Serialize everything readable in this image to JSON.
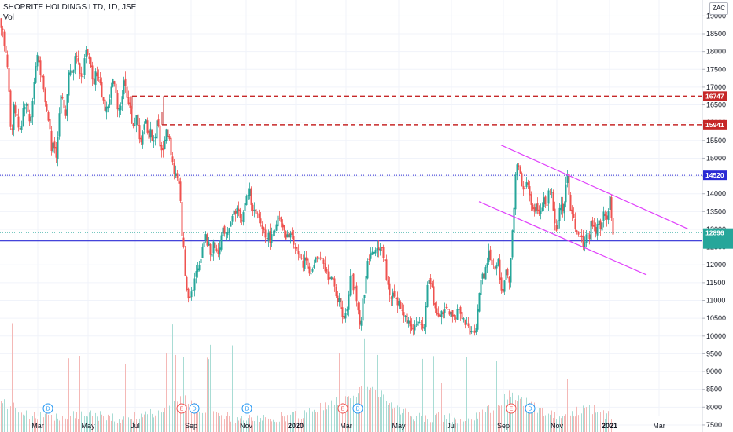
{
  "header": {
    "symbol_title": "SHOPRITE HOLDINGS LTD, 1D, JSE",
    "volume_label": "Vol",
    "currency": "ZAC"
  },
  "colors": {
    "up": "#26a69a",
    "down": "#ef5350",
    "resistance": "#c62828",
    "support_blue": "#2a2ad4",
    "channel": "#e040fb",
    "current_price": "#26a69a"
  },
  "chart_data": {
    "type": "candlestick",
    "ylim": [
      7300,
      19450
    ],
    "y_ticks": [
      7500,
      8000,
      8500,
      9000,
      9500,
      10000,
      10500,
      11000,
      11500,
      12000,
      12500,
      13000,
      13500,
      14000,
      14500,
      15000,
      15500,
      16000,
      16500,
      17000,
      17500,
      18000,
      18500,
      19000
    ],
    "x_ticks": [
      "Mar",
      "May",
      "Jul",
      "Sep",
      "Nov",
      "2020",
      "Mar",
      "May",
      "Jul",
      "Sep",
      "Nov",
      "2021",
      "Mar"
    ],
    "price_path": [
      [
        0,
        18900
      ],
      [
        3,
        18500
      ],
      [
        6,
        18000
      ],
      [
        9,
        17600
      ],
      [
        12,
        16600
      ],
      [
        14,
        15200
      ],
      [
        16,
        16600
      ],
      [
        19,
        16300
      ],
      [
        22,
        16000
      ],
      [
        26,
        15800
      ],
      [
        30,
        16600
      ],
      [
        34,
        16400
      ],
      [
        38,
        16000
      ],
      [
        41,
        16600
      ],
      [
        44,
        17400
      ],
      [
        47,
        17900
      ],
      [
        50,
        17600
      ],
      [
        54,
        17000
      ],
      [
        58,
        16400
      ],
      [
        62,
        16000
      ],
      [
        65,
        15300
      ],
      [
        68,
        15500
      ],
      [
        71,
        15100
      ],
      [
        74,
        16000
      ],
      [
        77,
        16800
      ],
      [
        80,
        16500
      ],
      [
        83,
        16200
      ],
      [
        86,
        17200
      ],
      [
        89,
        17600
      ],
      [
        92,
        17500
      ],
      [
        95,
        17800
      ],
      [
        98,
        17700
      ],
      [
        101,
        17400
      ],
      [
        104,
        17200
      ],
      [
        107,
        17800
      ],
      [
        110,
        18100
      ],
      [
        113,
        17700
      ],
      [
        116,
        17400
      ],
      [
        119,
        17200
      ],
      [
        122,
        17500
      ],
      [
        125,
        17200
      ],
      [
        128,
        16900
      ],
      [
        131,
        16600
      ],
      [
        134,
        16300
      ],
      [
        137,
        16500
      ],
      [
        140,
        16800
      ],
      [
        143,
        17200
      ],
      [
        146,
        16900
      ],
      [
        149,
        16500
      ],
      [
        152,
        16400
      ],
      [
        155,
        16800
      ],
      [
        158,
        17300
      ],
      [
        161,
        16800
      ],
      [
        164,
        16400
      ],
      [
        167,
        16100
      ],
      [
        170,
        15900
      ],
      [
        173,
        16100
      ],
      [
        176,
        15700
      ],
      [
        179,
        15500
      ],
      [
        182,
        15800
      ],
      [
        185,
        16000
      ],
      [
        188,
        15500
      ],
      [
        191,
        15900
      ],
      [
        194,
        15300
      ],
      [
        197,
        15700
      ],
      [
        200,
        16200
      ],
      [
        203,
        15400
      ],
      [
        206,
        15000
      ],
      [
        209,
        15600
      ],
      [
        212,
        15800
      ],
      [
        215,
        15500
      ],
      [
        218,
        15000
      ],
      [
        221,
        14600
      ],
      [
        224,
        14500
      ],
      [
        227,
        14200
      ],
      [
        229,
        13700
      ],
      [
        231,
        12900
      ],
      [
        233,
        12400
      ],
      [
        235,
        11700
      ],
      [
        237,
        11300
      ],
      [
        240,
        11100
      ],
      [
        244,
        11300
      ],
      [
        248,
        11700
      ],
      [
        252,
        11900
      ],
      [
        256,
        12400
      ],
      [
        260,
        12800
      ],
      [
        264,
        12600
      ],
      [
        268,
        12300
      ],
      [
        272,
        12600
      ],
      [
        276,
        12300
      ],
      [
        280,
        12700
      ],
      [
        284,
        13000
      ],
      [
        288,
        12900
      ],
      [
        292,
        13200
      ],
      [
        296,
        13400
      ],
      [
        300,
        13600
      ],
      [
        304,
        13400
      ],
      [
        308,
        13300
      ],
      [
        312,
        13800
      ],
      [
        316,
        14100
      ],
      [
        320,
        13700
      ],
      [
        324,
        13400
      ],
      [
        328,
        13300
      ],
      [
        332,
        13100
      ],
      [
        336,
        12900
      ],
      [
        340,
        12800
      ],
      [
        344,
        12700
      ],
      [
        348,
        13000
      ],
      [
        352,
        13300
      ],
      [
        356,
        13200
      ],
      [
        360,
        12900
      ],
      [
        364,
        12700
      ],
      [
        368,
        12900
      ],
      [
        372,
        12700
      ],
      [
        376,
        12500
      ],
      [
        380,
        12200
      ],
      [
        384,
        12000
      ],
      [
        388,
        12200
      ],
      [
        392,
        11900
      ],
      [
        396,
        11700
      ],
      [
        400,
        12100
      ],
      [
        404,
        12200
      ],
      [
        408,
        12100
      ],
      [
        412,
        11900
      ],
      [
        416,
        11700
      ],
      [
        420,
        11700
      ],
      [
        424,
        11400
      ],
      [
        428,
        11100
      ],
      [
        432,
        10900
      ],
      [
        436,
        10500
      ],
      [
        440,
        10700
      ],
      [
        443,
        11200
      ],
      [
        446,
        12000
      ],
      [
        449,
        11400
      ],
      [
        452,
        11300
      ],
      [
        455,
        10600
      ],
      [
        458,
        10000
      ],
      [
        461,
        11000
      ],
      [
        464,
        11400
      ],
      [
        467,
        12000
      ],
      [
        470,
        12200
      ],
      [
        473,
        12400
      ],
      [
        476,
        12500
      ],
      [
        480,
        12400
      ],
      [
        484,
        12600
      ],
      [
        488,
        12200
      ],
      [
        491,
        11600
      ],
      [
        494,
        11200
      ],
      [
        497,
        11100
      ],
      [
        500,
        11300
      ],
      [
        504,
        10900
      ],
      [
        508,
        10900
      ],
      [
        512,
        10700
      ],
      [
        516,
        10500
      ],
      [
        520,
        10300
      ],
      [
        524,
        10200
      ],
      [
        528,
        10300
      ],
      [
        532,
        10400
      ],
      [
        536,
        10300
      ],
      [
        540,
        10400
      ],
      [
        543,
        11400
      ],
      [
        546,
        11600
      ],
      [
        549,
        11300
      ],
      [
        552,
        10800
      ],
      [
        555,
        10700
      ],
      [
        558,
        10600
      ],
      [
        561,
        10700
      ],
      [
        564,
        10600
      ],
      [
        567,
        10800
      ],
      [
        570,
        10700
      ],
      [
        573,
        10600
      ],
      [
        576,
        10700
      ],
      [
        579,
        10600
      ],
      [
        582,
        10700
      ],
      [
        585,
        10500
      ],
      [
        588,
        10500
      ],
      [
        591,
        10400
      ],
      [
        594,
        10300
      ],
      [
        597,
        10100
      ],
      [
        600,
        10000
      ],
      [
        603,
        10200
      ],
      [
        606,
        10400
      ],
      [
        609,
        11300
      ],
      [
        612,
        11600
      ],
      [
        615,
        11700
      ],
      [
        618,
        12000
      ],
      [
        621,
        12300
      ],
      [
        624,
        12100
      ],
      [
        627,
        11900
      ],
      [
        630,
        11800
      ],
      [
        633,
        12100
      ],
      [
        636,
        11500
      ],
      [
        638,
        11100
      ],
      [
        641,
        11600
      ],
      [
        644,
        11900
      ],
      [
        647,
        11600
      ],
      [
        650,
        12500
      ],
      [
        652,
        13200
      ],
      [
        654,
        14200
      ],
      [
        656,
        15000
      ],
      [
        658,
        14700
      ],
      [
        661,
        14500
      ],
      [
        664,
        14200
      ],
      [
        667,
        14100
      ],
      [
        670,
        14300
      ],
      [
        673,
        13900
      ],
      [
        676,
        13700
      ],
      [
        679,
        13500
      ],
      [
        682,
        13700
      ],
      [
        685,
        13400
      ],
      [
        688,
        13600
      ],
      [
        691,
        13800
      ],
      [
        694,
        13600
      ],
      [
        697,
        14000
      ],
      [
        700,
        14200
      ],
      [
        703,
        13600
      ],
      [
        706,
        12900
      ],
      [
        709,
        13200
      ],
      [
        712,
        13700
      ],
      [
        715,
        13400
      ],
      [
        718,
        14000
      ],
      [
        721,
        14500
      ],
      [
        724,
        13700
      ],
      [
        727,
        13500
      ],
      [
        730,
        13200
      ],
      [
        733,
        12900
      ],
      [
        736,
        12700
      ],
      [
        739,
        12800
      ],
      [
        742,
        12500
      ],
      [
        745,
        12900
      ],
      [
        748,
        12700
      ],
      [
        751,
        13100
      ],
      [
        754,
        13200
      ],
      [
        757,
        13000
      ],
      [
        760,
        13300
      ],
      [
        763,
        13100
      ],
      [
        766,
        13400
      ],
      [
        769,
        13500
      ],
      [
        772,
        13300
      ],
      [
        775,
        14000
      ],
      [
        777,
        13400
      ],
      [
        779,
        12900
      ]
    ],
    "volume_path": [
      [
        0,
        8100
      ],
      [
        40,
        7700
      ],
      [
        80,
        7700
      ],
      [
        120,
        7700
      ],
      [
        160,
        7600
      ],
      [
        200,
        7800
      ],
      [
        230,
        8200
      ],
      [
        270,
        7700
      ],
      [
        320,
        7600
      ],
      [
        380,
        7700
      ],
      [
        440,
        8200
      ],
      [
        470,
        8500
      ],
      [
        520,
        7700
      ],
      [
        600,
        7600
      ],
      [
        650,
        8300
      ],
      [
        700,
        7700
      ],
      [
        760,
        7900
      ],
      [
        779,
        7600
      ]
    ],
    "horizontal_levels": [
      {
        "price": 16747,
        "label": "16747",
        "style": "dashed",
        "color": "#c62828",
        "x_start": 168
      },
      {
        "price": 15941,
        "label": "15941",
        "style": "dashed",
        "color": "#c62828",
        "x_start": 206
      },
      {
        "price": 14520,
        "label": "14520",
        "style": "dotted",
        "color": "#2a2ad4",
        "x_start": 0
      },
      {
        "price": 12675,
        "label": "12675",
        "style": "solid",
        "color": "#2a2ad4",
        "x_start": 0
      }
    ],
    "current_price": {
      "price": 12896,
      "label": "12896"
    },
    "channel": {
      "upper": [
        [
          637,
          15370
        ],
        [
          875,
          13010
        ]
      ],
      "lower": [
        [
          609,
          13780
        ],
        [
          822,
          11720
        ]
      ]
    },
    "event_markers": [
      {
        "type": "D",
        "x": 61
      },
      {
        "type": "E",
        "x": 231
      },
      {
        "type": "D",
        "x": 247
      },
      {
        "type": "D",
        "x": 314
      },
      {
        "type": "E",
        "x": 436
      },
      {
        "type": "D",
        "x": 455
      },
      {
        "type": "E",
        "x": 650
      },
      {
        "type": "D",
        "x": 674
      }
    ]
  }
}
